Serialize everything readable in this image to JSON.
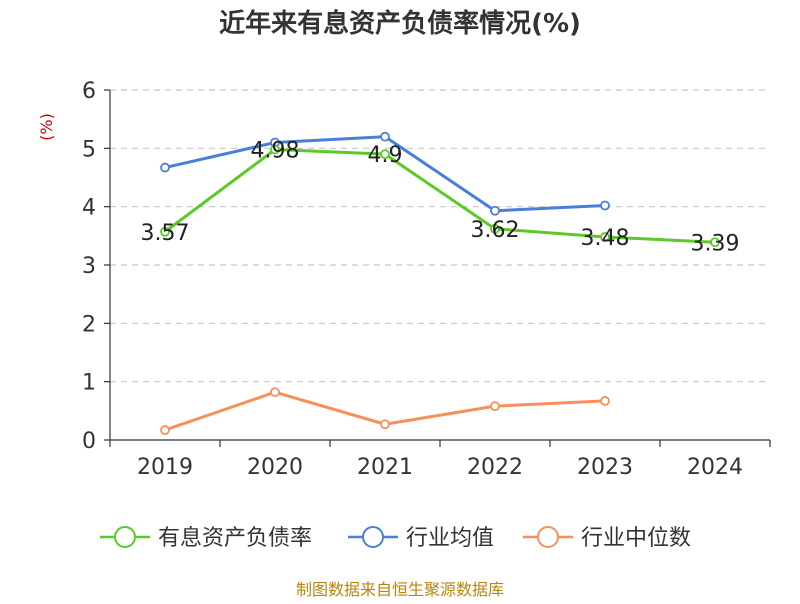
{
  "chart_data": {
    "type": "line",
    "title": "近年来有息资产负债率情况(%)",
    "ylabel": "(%)",
    "xlabel": "",
    "categories": [
      "2019",
      "2020",
      "2021",
      "2022",
      "2023",
      "2024"
    ],
    "ylim": [
      0,
      6
    ],
    "yticks": [
      0,
      1,
      2,
      3,
      4,
      5,
      6
    ],
    "grid": true,
    "legend_position": "bottom",
    "series": [
      {
        "name": "有息资产负债率",
        "color": "#5cc928",
        "values": [
          3.57,
          4.98,
          4.9,
          3.62,
          3.48,
          3.39
        ],
        "labels": [
          "3.57",
          "4.98",
          "4.9",
          "3.62",
          "3.48",
          "3.39"
        ]
      },
      {
        "name": "行业均值",
        "color": "#4a7fd9",
        "values": [
          4.67,
          5.1,
          5.2,
          3.93,
          4.02,
          null
        ]
      },
      {
        "name": "行业中位数",
        "color": "#f5905a",
        "values": [
          0.17,
          0.82,
          0.27,
          0.58,
          0.67,
          null
        ]
      }
    ]
  },
  "footer": {
    "source": "制图数据来自恒生聚源数据库"
  }
}
